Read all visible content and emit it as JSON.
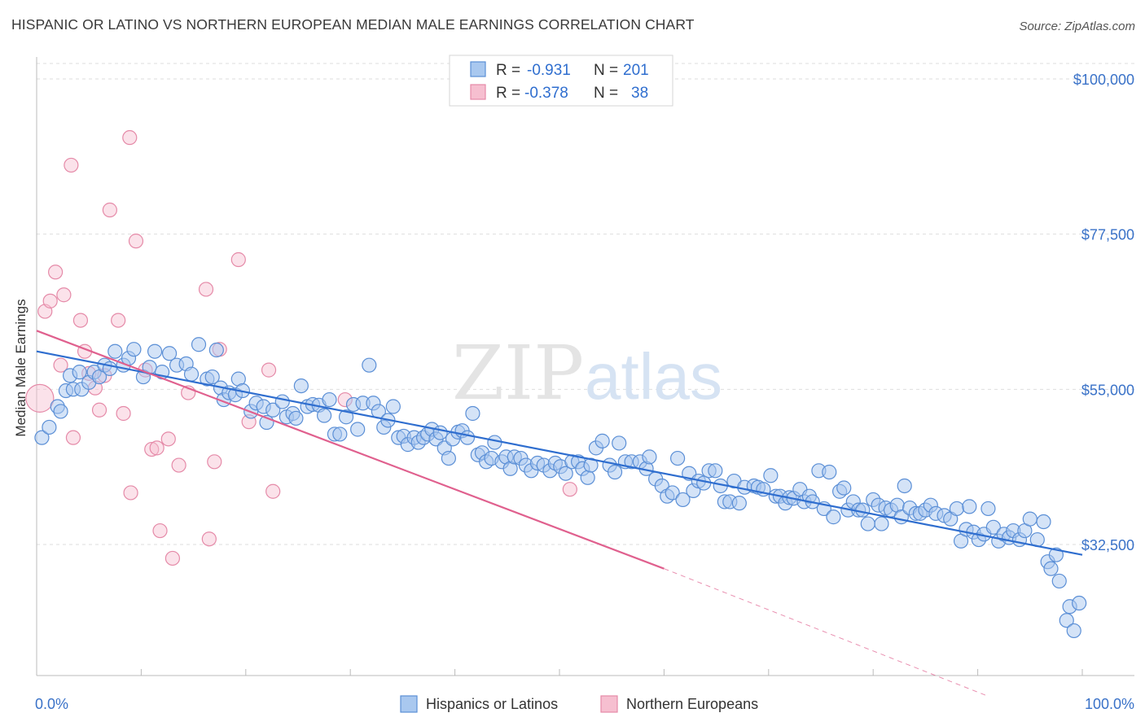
{
  "title": "HISPANIC OR LATINO VS NORTHERN EUROPEAN MEDIAN MALE EARNINGS CORRELATION CHART",
  "source": "Source: ZipAtlas.com",
  "watermark": {
    "zip": "ZIP",
    "atlas": "atlas"
  },
  "colors": {
    "blue_fill": "#a9c8ef",
    "blue_stroke": "#5b8fd6",
    "blue_line": "#2f6ecf",
    "pink_fill": "#f6bfd0",
    "pink_stroke": "#e58aa8",
    "pink_line": "#e0608e",
    "grid": "#dedede",
    "label": "#3a72c8"
  },
  "stats": [
    {
      "r_label": "R =",
      "r_value": "-0.931",
      "n_label": "N =",
      "n_value": "201"
    },
    {
      "r_label": "R =",
      "r_value": "-0.378",
      "n_label": "N =",
      "n_value": "38"
    }
  ],
  "chart_data": {
    "type": "scatter",
    "xlabel": "",
    "ylabel": "Median Male Earnings",
    "xlim": [
      0,
      100
    ],
    "ylim": [
      10000,
      103000
    ],
    "x_tick_labels": [
      "0.0%",
      "100.0%"
    ],
    "y_ticks": [
      100000,
      77500,
      55000,
      32500
    ],
    "y_tick_labels": [
      "$100,000",
      "$77,500",
      "$55,000",
      "$32,500"
    ],
    "grid": true,
    "legend": "bottom",
    "series": [
      {
        "name": "Hispanics or Latinos",
        "color": "#5b8fd6",
        "trend": {
          "x": [
            0,
            100
          ],
          "y": [
            60500,
            31000
          ],
          "dashed_to": null
        },
        "points": [
          [
            0.5,
            48
          ],
          [
            1.2,
            49.5
          ],
          [
            2,
            52.5
          ],
          [
            2.3,
            51.8
          ],
          [
            2.8,
            54.8
          ],
          [
            3.2,
            57
          ],
          [
            3.5,
            55
          ],
          [
            4.1,
            57.5
          ],
          [
            4.3,
            55
          ],
          [
            5,
            56
          ],
          [
            5.5,
            57.5
          ],
          [
            6,
            56.8
          ],
          [
            6.5,
            58.5
          ],
          [
            7,
            58
          ],
          [
            7.5,
            60.5
          ],
          [
            8.3,
            58.5
          ],
          [
            8.8,
            59.5
          ],
          [
            9.3,
            60.8
          ],
          [
            10.2,
            56.8
          ],
          [
            10.8,
            58.2
          ],
          [
            11.3,
            60.5
          ],
          [
            12,
            57.5
          ],
          [
            12.7,
            60.2
          ],
          [
            13.4,
            58.5
          ],
          [
            14.3,
            58.7
          ],
          [
            14.8,
            57.2
          ],
          [
            15.5,
            61.5
          ],
          [
            16.3,
            56.5
          ],
          [
            16.8,
            56.8
          ],
          [
            17.2,
            60.7
          ],
          [
            17.6,
            55.2
          ],
          [
            17.9,
            53.5
          ],
          [
            18.4,
            54.5
          ],
          [
            19,
            54.2
          ],
          [
            19.3,
            56.5
          ],
          [
            19.7,
            54.8
          ],
          [
            20.5,
            51.8
          ],
          [
            21,
            53
          ],
          [
            21.7,
            52.5
          ],
          [
            22,
            50.2
          ],
          [
            22.6,
            52
          ],
          [
            23.5,
            53.2
          ],
          [
            23.9,
            51
          ],
          [
            24.5,
            51.5
          ],
          [
            24.8,
            50.8
          ],
          [
            25.3,
            55.5
          ],
          [
            25.9,
            52.5
          ],
          [
            26.4,
            52.8
          ],
          [
            27,
            52.7
          ],
          [
            27.5,
            51.2
          ],
          [
            28,
            53.5
          ],
          [
            28.5,
            48.5
          ],
          [
            29,
            48.5
          ],
          [
            29.6,
            51
          ],
          [
            30.3,
            52.8
          ],
          [
            30.7,
            49.2
          ],
          [
            31.2,
            53
          ],
          [
            31.8,
            58.5
          ],
          [
            32.2,
            53
          ],
          [
            32.7,
            51.8
          ],
          [
            33.2,
            49.5
          ],
          [
            33.6,
            50.5
          ],
          [
            34.1,
            52.5
          ],
          [
            34.6,
            48
          ],
          [
            35.1,
            48.2
          ],
          [
            35.5,
            47
          ],
          [
            36.1,
            48
          ],
          [
            36.5,
            47.3
          ],
          [
            37,
            48
          ],
          [
            37.4,
            48.5
          ],
          [
            37.8,
            49.2
          ],
          [
            38.2,
            47.8
          ],
          [
            38.6,
            48.7
          ],
          [
            39,
            46.5
          ],
          [
            39.4,
            45
          ],
          [
            39.8,
            47.8
          ],
          [
            40.3,
            48.8
          ],
          [
            40.7,
            49
          ],
          [
            41.2,
            48
          ],
          [
            41.7,
            51.5
          ],
          [
            42.2,
            45.5
          ],
          [
            42.6,
            45.8
          ],
          [
            43,
            44.5
          ],
          [
            43.5,
            45
          ],
          [
            43.8,
            47.3
          ],
          [
            44.5,
            44.5
          ],
          [
            44.9,
            45.2
          ],
          [
            45.3,
            43.5
          ],
          [
            45.7,
            45.2
          ],
          [
            46.3,
            45
          ],
          [
            46.8,
            44
          ],
          [
            47.3,
            43.2
          ],
          [
            47.9,
            44.3
          ],
          [
            48.5,
            44
          ],
          [
            49.1,
            43.2
          ],
          [
            49.6,
            44.3
          ],
          [
            50.1,
            43.8
          ],
          [
            50.6,
            42.8
          ],
          [
            51.2,
            44.5
          ],
          [
            51.8,
            44.5
          ],
          [
            52.2,
            43.5
          ],
          [
            52.7,
            42.2
          ],
          [
            53,
            44
          ],
          [
            53.5,
            46.5
          ],
          [
            54.1,
            47.5
          ],
          [
            54.8,
            44
          ],
          [
            55.3,
            43
          ],
          [
            55.7,
            47.2
          ],
          [
            56.3,
            44.5
          ],
          [
            56.9,
            44.5
          ],
          [
            57.7,
            44.5
          ],
          [
            58.3,
            43.5
          ],
          [
            58.6,
            45.2
          ],
          [
            59.2,
            42
          ],
          [
            59.8,
            41
          ],
          [
            60.3,
            39.5
          ],
          [
            60.8,
            40
          ],
          [
            61.3,
            45
          ],
          [
            61.8,
            39
          ],
          [
            62.4,
            42.8
          ],
          [
            62.8,
            40.3
          ],
          [
            63.3,
            41.7
          ],
          [
            63.8,
            41.4
          ],
          [
            64.3,
            43.2
          ],
          [
            64.9,
            43.2
          ],
          [
            65.4,
            41
          ],
          [
            65.8,
            38.7
          ],
          [
            66.3,
            38.7
          ],
          [
            66.7,
            41.7
          ],
          [
            67.2,
            38.5
          ],
          [
            67.7,
            40.8
          ],
          [
            68.6,
            41
          ],
          [
            69,
            40.8
          ],
          [
            69.5,
            40.5
          ],
          [
            70.2,
            42.5
          ],
          [
            70.7,
            39.5
          ],
          [
            71.1,
            39.5
          ],
          [
            71.6,
            38.5
          ],
          [
            72,
            39.3
          ],
          [
            72.4,
            39.2
          ],
          [
            73,
            40.5
          ],
          [
            73.4,
            38.7
          ],
          [
            73.9,
            39.5
          ],
          [
            74.2,
            38.7
          ],
          [
            74.8,
            43.2
          ],
          [
            75.3,
            37.7
          ],
          [
            75.8,
            43
          ],
          [
            76.2,
            36.5
          ],
          [
            76.8,
            40.2
          ],
          [
            77.2,
            40.7
          ],
          [
            77.6,
            37.5
          ],
          [
            78.1,
            38.7
          ],
          [
            78.6,
            37.5
          ],
          [
            79,
            37.5
          ],
          [
            79.5,
            35.5
          ],
          [
            80,
            39
          ],
          [
            80.5,
            38.2
          ],
          [
            80.8,
            35.5
          ],
          [
            81.2,
            37.8
          ],
          [
            81.7,
            37.5
          ],
          [
            82.3,
            38.2
          ],
          [
            82.7,
            36.5
          ],
          [
            83,
            41
          ],
          [
            83.5,
            37.8
          ],
          [
            84.1,
            37
          ],
          [
            84.5,
            37
          ],
          [
            85,
            37.5
          ],
          [
            85.5,
            38.2
          ],
          [
            86,
            37
          ],
          [
            86.8,
            36.7
          ],
          [
            87.4,
            36.2
          ],
          [
            88,
            37.7
          ],
          [
            88.4,
            33
          ],
          [
            88.9,
            34.7
          ],
          [
            89.2,
            38
          ],
          [
            89.6,
            34.3
          ],
          [
            90.1,
            33.2
          ],
          [
            90.6,
            34
          ],
          [
            91,
            37.7
          ],
          [
            91.5,
            35
          ],
          [
            92,
            33
          ],
          [
            92.5,
            34
          ],
          [
            93,
            33.5
          ],
          [
            93.4,
            34.5
          ],
          [
            94,
            33.2
          ],
          [
            94.5,
            34.5
          ],
          [
            95,
            36.2
          ],
          [
            95.7,
            33.2
          ],
          [
            96.3,
            35.8
          ],
          [
            96.7,
            30
          ],
          [
            97,
            29
          ],
          [
            97.5,
            31
          ],
          [
            97.8,
            27.2
          ],
          [
            98.5,
            21.5
          ],
          [
            98.8,
            23.5
          ],
          [
            99.2,
            20
          ],
          [
            99.7,
            24
          ]
        ]
      },
      {
        "name": "Northern Europeans",
        "color": "#e58aa8",
        "trend": {
          "x": [
            0,
            60
          ],
          "y": [
            63500,
            29000
          ],
          "dashed_to": [
            91,
            10500
          ]
        },
        "points": [
          [
            0.3,
            53.7
          ],
          [
            0.8,
            66.3
          ],
          [
            1.3,
            67.8
          ],
          [
            1.8,
            72
          ],
          [
            2.3,
            58.5
          ],
          [
            2.6,
            68.7
          ],
          [
            3.3,
            87.5
          ],
          [
            3.5,
            48
          ],
          [
            4.2,
            65
          ],
          [
            4.6,
            60.5
          ],
          [
            5,
            57.3
          ],
          [
            5.6,
            55.2
          ],
          [
            6,
            52
          ],
          [
            6.5,
            57
          ],
          [
            7,
            81
          ],
          [
            7.8,
            65
          ],
          [
            8.3,
            51.5
          ],
          [
            8.9,
            91.5
          ],
          [
            9,
            40
          ],
          [
            9.5,
            76.5
          ],
          [
            10.4,
            57.8
          ],
          [
            11,
            46.3
          ],
          [
            11.5,
            46.5
          ],
          [
            11.8,
            34.5
          ],
          [
            12.6,
            47.8
          ],
          [
            13,
            30.5
          ],
          [
            13.6,
            44
          ],
          [
            14.5,
            54.5
          ],
          [
            16.2,
            69.5
          ],
          [
            16.5,
            33.3
          ],
          [
            17,
            44.5
          ],
          [
            17.5,
            60.8
          ],
          [
            19.3,
            73.8
          ],
          [
            20.3,
            50.3
          ],
          [
            22.2,
            57.8
          ],
          [
            22.6,
            40.2
          ],
          [
            29.5,
            53.5
          ],
          [
            51,
            40.5
          ]
        ]
      }
    ]
  },
  "legend": {
    "items": [
      "Hispanics or Latinos",
      "Northern Europeans"
    ]
  }
}
